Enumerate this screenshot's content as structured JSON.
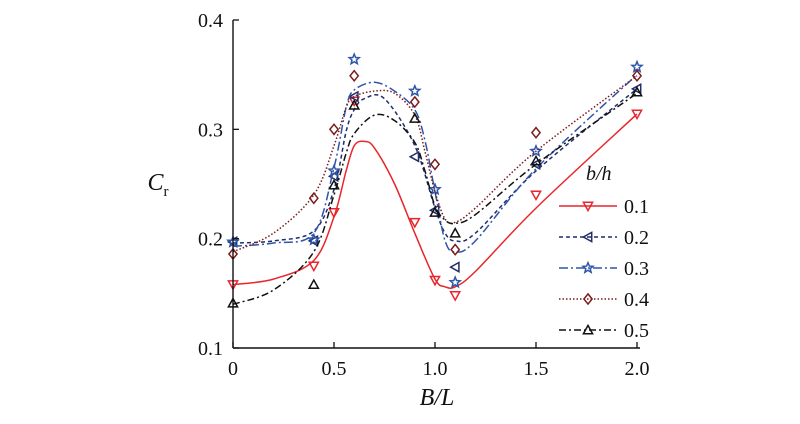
{
  "chart_data": {
    "type": "line",
    "xlabel": "B/L",
    "ylabel": "C",
    "ylabel_sub": "r",
    "xlim": [
      0,
      2.0
    ],
    "ylim": [
      0.1,
      0.4
    ],
    "xticks": [
      "0",
      "0.5",
      "1.0",
      "1.5",
      "2.0"
    ],
    "yticks": [
      "0.1",
      "0.2",
      "0.3",
      "0.4"
    ],
    "grid": false,
    "legend_title": "b/h",
    "legend_position": "right",
    "series": [
      {
        "name": "0.1",
        "color": "#e8262b",
        "marker": "triangle-down",
        "dash": "",
        "points": [
          [
            0,
            0.158
          ],
          [
            0.4,
            0.175
          ],
          [
            0.5,
            0.224
          ],
          [
            0.6,
            0.326
          ],
          [
            0.9,
            0.215
          ],
          [
            1.0,
            0.162
          ],
          [
            1.1,
            0.148
          ],
          [
            1.5,
            0.24
          ],
          [
            2.0,
            0.314
          ]
        ],
        "curve": [
          [
            0,
            0.158
          ],
          [
            0.2,
            0.163
          ],
          [
            0.4,
            0.18
          ],
          [
            0.5,
            0.22
          ],
          [
            0.56,
            0.262
          ],
          [
            0.6,
            0.285
          ],
          [
            0.65,
            0.289
          ],
          [
            0.7,
            0.283
          ],
          [
            0.8,
            0.25
          ],
          [
            0.9,
            0.205
          ],
          [
            1.0,
            0.163
          ],
          [
            1.05,
            0.156
          ],
          [
            1.1,
            0.156
          ],
          [
            1.2,
            0.17
          ],
          [
            1.5,
            0.228
          ],
          [
            2.0,
            0.314
          ]
        ]
      },
      {
        "name": "0.2",
        "color": "#1f2d6b",
        "marker": "triangle-left",
        "dash": "4,3",
        "points": [
          [
            0,
            0.197
          ],
          [
            0.4,
            0.198
          ],
          [
            0.5,
            0.257
          ],
          [
            0.6,
            0.33
          ],
          [
            0.9,
            0.275
          ],
          [
            1.0,
            0.226
          ],
          [
            1.1,
            0.174
          ],
          [
            1.5,
            0.268
          ],
          [
            2.0,
            0.337
          ]
        ],
        "curve": [
          [
            0,
            0.196
          ],
          [
            0.2,
            0.198
          ],
          [
            0.4,
            0.207
          ],
          [
            0.5,
            0.245
          ],
          [
            0.56,
            0.298
          ],
          [
            0.6,
            0.318
          ],
          [
            0.65,
            0.328
          ],
          [
            0.75,
            0.328
          ],
          [
            0.9,
            0.285
          ],
          [
            1.0,
            0.228
          ],
          [
            1.05,
            0.205
          ],
          [
            1.1,
            0.198
          ],
          [
            1.2,
            0.205
          ],
          [
            1.5,
            0.262
          ],
          [
            2.0,
            0.337
          ]
        ]
      },
      {
        "name": "0.3",
        "color": "#2e55a8",
        "marker": "star",
        "dash": "9,3,2,3",
        "points": [
          [
            0,
            0.197
          ],
          [
            0.4,
            0.199
          ],
          [
            0.5,
            0.262
          ],
          [
            0.6,
            0.364
          ],
          [
            0.9,
            0.335
          ],
          [
            1.0,
            0.245
          ],
          [
            1.1,
            0.16
          ],
          [
            1.5,
            0.28
          ],
          [
            2.0,
            0.357
          ]
        ],
        "curve": [
          [
            0,
            0.193
          ],
          [
            0.2,
            0.196
          ],
          [
            0.4,
            0.205
          ],
          [
            0.5,
            0.265
          ],
          [
            0.56,
            0.32
          ],
          [
            0.6,
            0.336
          ],
          [
            0.7,
            0.343
          ],
          [
            0.8,
            0.335
          ],
          [
            0.9,
            0.318
          ],
          [
            0.95,
            0.29
          ],
          [
            1.0,
            0.243
          ],
          [
            1.05,
            0.198
          ],
          [
            1.1,
            0.188
          ],
          [
            1.2,
            0.198
          ],
          [
            1.5,
            0.264
          ],
          [
            2.0,
            0.35
          ]
        ]
      },
      {
        "name": "0.4",
        "color": "#7a1c1c",
        "marker": "diamond",
        "dash": "1.5,2",
        "points": [
          [
            0,
            0.186
          ],
          [
            0.4,
            0.237
          ],
          [
            0.5,
            0.3
          ],
          [
            0.6,
            0.349
          ],
          [
            0.9,
            0.325
          ],
          [
            1.0,
            0.268
          ],
          [
            1.1,
            0.19
          ],
          [
            1.5,
            0.297
          ],
          [
            2.0,
            0.349
          ]
        ],
        "curve": [
          [
            0,
            0.188
          ],
          [
            0.2,
            0.205
          ],
          [
            0.4,
            0.24
          ],
          [
            0.5,
            0.285
          ],
          [
            0.56,
            0.32
          ],
          [
            0.6,
            0.33
          ],
          [
            0.7,
            0.335
          ],
          [
            0.8,
            0.333
          ],
          [
            0.9,
            0.313
          ],
          [
            0.95,
            0.28
          ],
          [
            1.0,
            0.243
          ],
          [
            1.05,
            0.218
          ],
          [
            1.1,
            0.215
          ],
          [
            1.2,
            0.228
          ],
          [
            1.5,
            0.28
          ],
          [
            2.0,
            0.349
          ]
        ]
      },
      {
        "name": "0.5",
        "color": "#111111",
        "marker": "triangle-up",
        "dash": "7,3,2,3",
        "points": [
          [
            0,
            0.141
          ],
          [
            0.4,
            0.158
          ],
          [
            0.5,
            0.249
          ],
          [
            0.6,
            0.322
          ],
          [
            0.9,
            0.31
          ],
          [
            1.0,
            0.224
          ],
          [
            1.1,
            0.205
          ],
          [
            1.5,
            0.271
          ],
          [
            2.0,
            0.334
          ]
        ],
        "curve": [
          [
            0,
            0.14
          ],
          [
            0.2,
            0.153
          ],
          [
            0.4,
            0.188
          ],
          [
            0.5,
            0.24
          ],
          [
            0.56,
            0.278
          ],
          [
            0.6,
            0.296
          ],
          [
            0.7,
            0.313
          ],
          [
            0.8,
            0.308
          ],
          [
            0.9,
            0.288
          ],
          [
            0.95,
            0.262
          ],
          [
            1.0,
            0.23
          ],
          [
            1.05,
            0.217
          ],
          [
            1.1,
            0.214
          ],
          [
            1.2,
            0.222
          ],
          [
            1.5,
            0.268
          ],
          [
            2.0,
            0.333
          ]
        ]
      }
    ]
  }
}
